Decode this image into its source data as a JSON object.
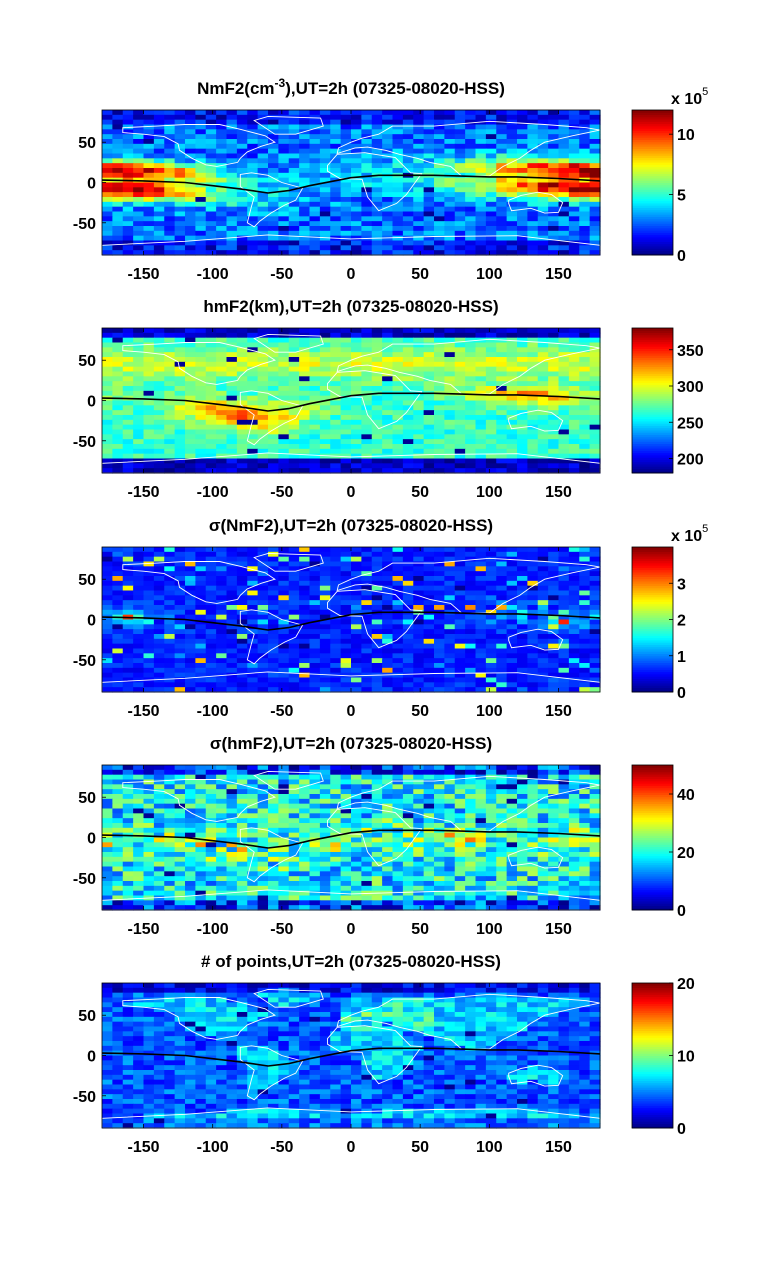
{
  "chart_data": [
    {
      "type": "heatmap",
      "title_main": "NmF2(cm",
      "title_sup": "-3",
      "title_rest": "),UT=2h (07325-08020-HSS)",
      "x_ticks": [
        -150,
        -100,
        -50,
        0,
        50,
        100,
        150
      ],
      "y_ticks": [
        50,
        0,
        -50
      ],
      "xlim": [
        -180,
        180
      ],
      "ylim": [
        -90,
        90
      ],
      "colorbar": {
        "min": 0,
        "max": 12,
        "ticks": [
          0,
          5,
          10
        ],
        "multiplier_text": "x 10",
        "multiplier_exp": "5"
      },
      "colormap": "jet",
      "grid": false,
      "overlays": [
        "coastlines (white)",
        "magnetic equator (black)"
      ]
    },
    {
      "type": "heatmap",
      "title_main": "hmF2(km),UT=2h (07325-08020-HSS)",
      "title_sup": "",
      "title_rest": "",
      "x_ticks": [
        -150,
        -100,
        -50,
        0,
        50,
        100,
        150
      ],
      "y_ticks": [
        50,
        0,
        -50
      ],
      "xlim": [
        -180,
        180
      ],
      "ylim": [
        -90,
        90
      ],
      "colorbar": {
        "min": 180,
        "max": 380,
        "ticks": [
          200,
          250,
          300,
          350
        ],
        "multiplier_text": "",
        "multiplier_exp": ""
      },
      "colormap": "jet",
      "grid": false,
      "overlays": [
        "coastlines (white)",
        "magnetic equator (black)"
      ]
    },
    {
      "type": "heatmap",
      "title_main": "σ(NmF2),UT=2h (07325-08020-HSS)",
      "title_sup": "",
      "title_rest": "",
      "x_ticks": [
        -150,
        -100,
        -50,
        0,
        50,
        100,
        150
      ],
      "y_ticks": [
        50,
        0,
        -50
      ],
      "xlim": [
        -180,
        180
      ],
      "ylim": [
        -90,
        90
      ],
      "colorbar": {
        "min": 0,
        "max": 4,
        "ticks": [
          0,
          1,
          2,
          3
        ],
        "multiplier_text": "x 10",
        "multiplier_exp": "5"
      },
      "colormap": "jet",
      "grid": false,
      "overlays": [
        "coastlines (white)",
        "magnetic equator (black)"
      ]
    },
    {
      "type": "heatmap",
      "title_main": "σ(hmF2),UT=2h (07325-08020-HSS)",
      "title_sup": "",
      "title_rest": "",
      "x_ticks": [
        -150,
        -100,
        -50,
        0,
        50,
        100,
        150
      ],
      "y_ticks": [
        50,
        0,
        -50
      ],
      "xlim": [
        -180,
        180
      ],
      "ylim": [
        -90,
        90
      ],
      "colorbar": {
        "min": 0,
        "max": 50,
        "ticks": [
          0,
          20,
          40
        ],
        "multiplier_text": "",
        "multiplier_exp": ""
      },
      "colormap": "jet",
      "grid": false,
      "overlays": [
        "coastlines (white)",
        "magnetic equator (black)"
      ]
    },
    {
      "type": "heatmap",
      "title_main": "# of points,UT=2h (07325-08020-HSS)",
      "title_sup": "",
      "title_rest": "",
      "x_ticks": [
        -150,
        -100,
        -50,
        0,
        50,
        100,
        150
      ],
      "y_ticks": [
        50,
        0,
        -50
      ],
      "xlim": [
        -180,
        180
      ],
      "ylim": [
        -90,
        90
      ],
      "colorbar": {
        "min": 0,
        "max": 20,
        "ticks": [
          0,
          10,
          20
        ],
        "multiplier_text": "",
        "multiplier_exp": ""
      },
      "colormap": "jet",
      "grid": false,
      "overlays": [
        "coastlines (white)",
        "magnetic equator (black)"
      ]
    }
  ],
  "magnetic_equator": {
    "lon": [
      -180,
      -150,
      -120,
      -100,
      -80,
      -60,
      -45,
      -30,
      -15,
      0,
      20,
      40,
      60,
      80,
      100,
      120,
      150,
      180
    ],
    "lat": [
      3,
      2,
      0,
      -4,
      -8,
      -13,
      -10,
      -4,
      1,
      6,
      9,
      9,
      9,
      8,
      7,
      7,
      5,
      2
    ]
  }
}
